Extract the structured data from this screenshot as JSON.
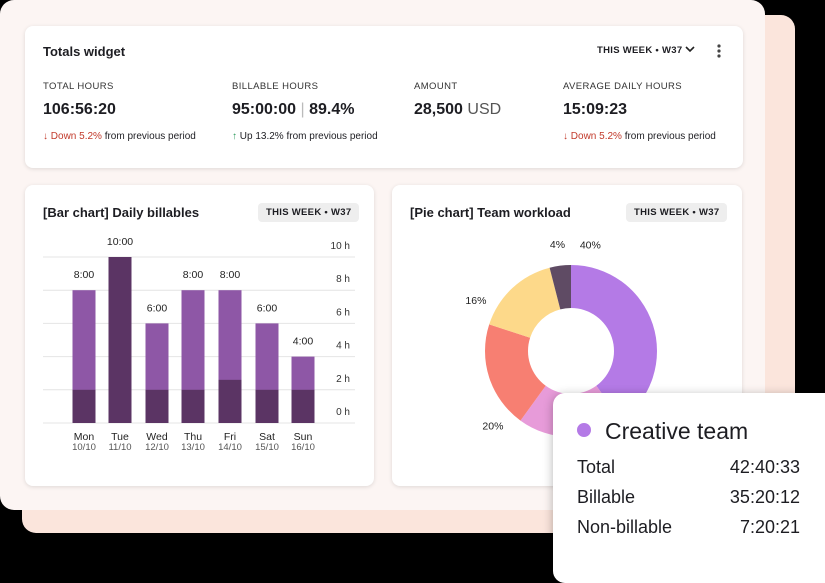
{
  "totals_widget": {
    "title": "Totals widget",
    "period": "THIS WEEK • W37",
    "metrics": [
      {
        "label": "TOTAL HOURS",
        "value": "106:56:20",
        "change": "Down 5.2%",
        "note": "from previous period"
      },
      {
        "label": "BILLABLE HOURS",
        "value": "95:00:00",
        "percent": "89.4%",
        "change": "Up 13.2%",
        "note": "from previous period"
      },
      {
        "label": "AMOUNT",
        "value": "28,500",
        "unit": "USD"
      },
      {
        "label": "AVERAGE DAILY HOURS",
        "value": "15:09:23",
        "change": "Down 5.2%",
        "note": "from previous period"
      }
    ]
  },
  "bar_chart": {
    "type": "bar",
    "title": "[Bar chart] Daily billables",
    "period": "THIS WEEK • W37",
    "categories": [
      "Mon",
      "Tue",
      "Wed",
      "Thu",
      "Fri",
      "Sat",
      "Sun"
    ],
    "dates": [
      "10/10",
      "11/10",
      "12/10",
      "13/10",
      "14/10",
      "15/10",
      "16/10"
    ],
    "values": [
      8,
      10,
      6,
      8,
      8,
      6,
      4
    ],
    "value_labels": [
      "8:00",
      "10:00",
      "6:00",
      "8:00",
      "8:00",
      "6:00",
      "4:00"
    ],
    "base_values": [
      2,
      10,
      2,
      2,
      2.6,
      2,
      2
    ],
    "color": "#8e57a6",
    "base_color": "#5b3464",
    "ylim": [
      0,
      10
    ],
    "yticks": [
      {
        "value": 0,
        "label": "0 h"
      },
      {
        "value": 2,
        "label": "2 h"
      },
      {
        "value": 4,
        "label": "4 h"
      },
      {
        "value": 6,
        "label": "6 h"
      },
      {
        "value": 8,
        "label": "8 h"
      },
      {
        "value": 10,
        "label": "10 h"
      }
    ],
    "grid": true
  },
  "pie_chart": {
    "type": "pie",
    "title": "[Pie chart] Team workload",
    "period": "THIS WEEK • W37",
    "values": [
      40,
      20,
      20,
      16,
      4
    ],
    "value_labels": [
      "40%",
      null,
      "20%",
      "16%",
      "4%"
    ],
    "colors": [
      "#b47ae6",
      "#e79bd9",
      "#f77f72",
      "#fdd98a",
      "#5f4b64"
    ]
  },
  "tooltip": {
    "name": "Creative team",
    "rows": [
      {
        "label": "Total",
        "value": "42:40:33"
      },
      {
        "label": "Billable",
        "value": "35:20:12"
      },
      {
        "label": "Non-billable",
        "value": "7:20:21"
      }
    ]
  }
}
